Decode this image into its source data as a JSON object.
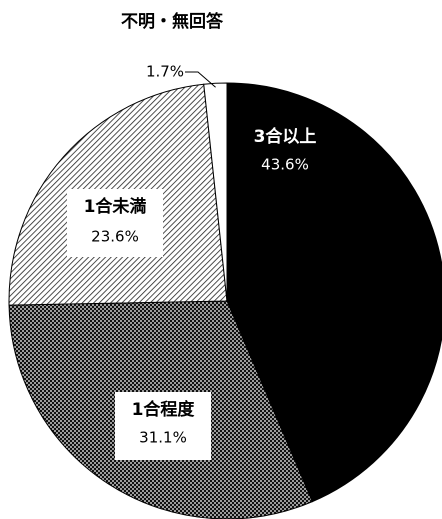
{
  "chart_data": {
    "type": "pie",
    "categories": [
      "3合以上",
      "1合程度",
      "1合未満",
      "不明・無回答"
    ],
    "values": [
      43.6,
      31.1,
      23.6,
      1.7
    ],
    "value_labels": [
      "43.6%",
      "31.1%",
      "23.6%",
      "1.7%"
    ],
    "colors": [
      "#000000",
      "dots",
      "hatch",
      "#ffffff"
    ]
  }
}
